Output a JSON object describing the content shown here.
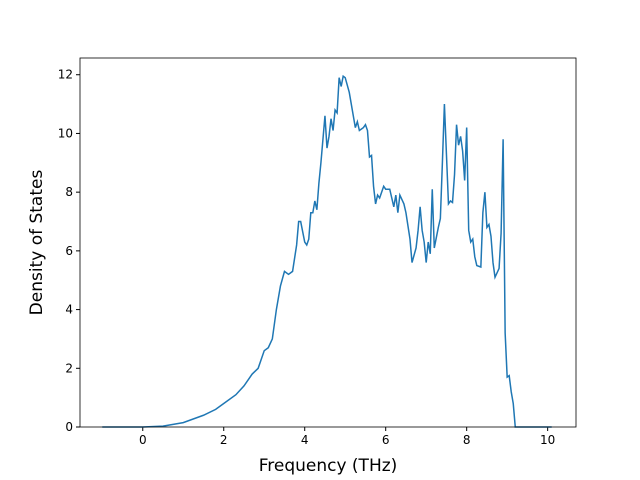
{
  "chart_data": {
    "type": "line",
    "x_label": "Frequency (THz)",
    "y_label": "Density of States",
    "xlim": [
      -1.55,
      10.7
    ],
    "ylim": [
      0,
      12.57
    ],
    "xticks": [
      0,
      2,
      4,
      6,
      8,
      10
    ],
    "yticks": [
      0,
      2,
      4,
      6,
      8,
      10,
      12
    ],
    "series": [
      {
        "color": "#1f77b4",
        "x": [
          -1,
          -0.5,
          0,
          0.5,
          1,
          1.5,
          1.8,
          2,
          2.3,
          2.5,
          2.6,
          2.7,
          2.85,
          3.0,
          3.1,
          3.2,
          3.3,
          3.4,
          3.5,
          3.6,
          3.7,
          3.8,
          3.85,
          3.9,
          4.0,
          4.05,
          4.1,
          4.15,
          4.2,
          4.25,
          4.3,
          4.35,
          4.4,
          4.5,
          4.55,
          4.6,
          4.65,
          4.7,
          4.75,
          4.8,
          4.85,
          4.9,
          4.95,
          5.0,
          5.1,
          5.2,
          5.25,
          5.3,
          5.35,
          5.45,
          5.5,
          5.55,
          5.6,
          5.65,
          5.7,
          5.75,
          5.8,
          5.85,
          5.95,
          6.0,
          6.1,
          6.2,
          6.25,
          6.3,
          6.35,
          6.45,
          6.5,
          6.6,
          6.65,
          6.75,
          6.8,
          6.85,
          6.9,
          6.95,
          7.0,
          7.05,
          7.1,
          7.15,
          7.2,
          7.3,
          7.35,
          7.4,
          7.45,
          7.5,
          7.55,
          7.6,
          7.65,
          7.7,
          7.75,
          7.8,
          7.85,
          7.9,
          7.95,
          8.0,
          8.05,
          8.1,
          8.15,
          8.2,
          8.25,
          8.35,
          8.4,
          8.45,
          8.5,
          8.55,
          8.6,
          8.65,
          8.7,
          8.8,
          8.85,
          8.9,
          8.95,
          9.0,
          9.05,
          9.1,
          9.15,
          9.2,
          10.1
        ],
        "values": [
          0,
          0,
          0,
          0.03,
          0.15,
          0.4,
          0.6,
          0.8,
          1.1,
          1.4,
          1.6,
          1.8,
          2.0,
          2.6,
          2.7,
          3.0,
          4.0,
          4.8,
          5.3,
          5.2,
          5.3,
          6.2,
          7.0,
          7.0,
          6.3,
          6.2,
          6.4,
          7.3,
          7.3,
          7.7,
          7.4,
          8.3,
          9.0,
          10.6,
          9.5,
          9.9,
          10.5,
          10.1,
          10.8,
          10.7,
          11.9,
          11.6,
          11.95,
          11.9,
          11.4,
          10.6,
          10.2,
          10.4,
          10.1,
          10.2,
          10.3,
          10.1,
          9.2,
          9.25,
          8.2,
          7.6,
          7.9,
          7.8,
          8.2,
          8.1,
          8.1,
          7.5,
          7.9,
          7.3,
          7.9,
          7.6,
          7.3,
          6.4,
          5.6,
          6.1,
          6.7,
          7.5,
          6.7,
          6.3,
          5.6,
          6.3,
          5.9,
          8.1,
          6.1,
          6.8,
          7.1,
          9.0,
          11.0,
          9.3,
          7.6,
          7.7,
          7.65,
          8.6,
          10.3,
          9.6,
          9.9,
          9.4,
          8.4,
          10.2,
          6.7,
          6.3,
          6.4,
          5.8,
          5.5,
          5.45,
          7.3,
          8.0,
          6.8,
          6.9,
          6.5,
          5.6,
          5.1,
          5.4,
          6.6,
          9.8,
          3.2,
          1.7,
          1.75,
          1.2,
          0.8,
          0,
          0
        ]
      }
    ]
  }
}
